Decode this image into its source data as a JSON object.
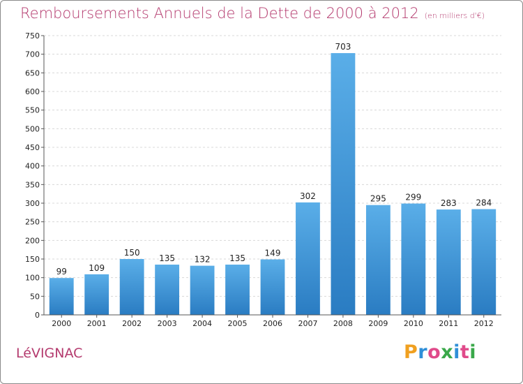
{
  "title": "Remboursements Annuels de la Dette de 2000 à 2012",
  "unit": "(en milliers d'€)",
  "commune": "LéVIGNAC",
  "logo": {
    "letters": [
      "P",
      "r",
      "o",
      "x",
      "i",
      "t",
      "i"
    ],
    "colors": [
      "#f0a020",
      "#2f8fd8",
      "#e04a8a",
      "#3aa84a",
      "#2f8fd8",
      "#e04a8a",
      "#3aa84a"
    ]
  },
  "chart_data": {
    "type": "bar",
    "title": "Remboursements Annuels de la Dette de 2000 à 2012",
    "subtitle": "(en milliers d'€)",
    "categories": [
      "2000",
      "2001",
      "2002",
      "2003",
      "2004",
      "2005",
      "2006",
      "2007",
      "2008",
      "2009",
      "2010",
      "2011",
      "2012"
    ],
    "values": [
      99,
      109,
      150,
      135,
      132,
      135,
      149,
      302,
      703,
      295,
      299,
      283,
      284
    ],
    "ylim": [
      0,
      750
    ],
    "yticks": [
      0,
      50,
      100,
      150,
      200,
      250,
      300,
      350,
      400,
      450,
      500,
      550,
      600,
      650,
      700,
      750
    ],
    "grid": true,
    "bar_color": "#4a9ee0"
  }
}
